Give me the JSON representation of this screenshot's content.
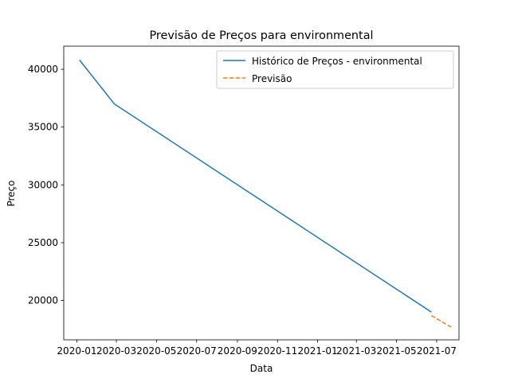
{
  "chart_data": {
    "type": "line",
    "title": "Previsão de Preços para environmental",
    "xlabel": "Data",
    "ylabel": "Preço",
    "x_axis_kind": "date",
    "xlim": [
      "2019-12-12",
      "2021-08-04"
    ],
    "ylim": [
      16600,
      42000
    ],
    "x_ticks": [
      {
        "date": "2020-01-01",
        "label": "2020-01"
      },
      {
        "date": "2020-03-01",
        "label": "2020-03"
      },
      {
        "date": "2020-05-01",
        "label": "2020-05"
      },
      {
        "date": "2020-07-01",
        "label": "2020-07"
      },
      {
        "date": "2020-09-01",
        "label": "2020-09"
      },
      {
        "date": "2020-11-01",
        "label": "2020-11"
      },
      {
        "date": "2021-01-01",
        "label": "2021-01"
      },
      {
        "date": "2021-03-01",
        "label": "2021-03"
      },
      {
        "date": "2021-05-01",
        "label": "2021-05"
      },
      {
        "date": "2021-07-01",
        "label": "2021-07"
      }
    ],
    "y_ticks": [
      {
        "value": 20000,
        "label": "20000"
      },
      {
        "value": 25000,
        "label": "25000"
      },
      {
        "value": 30000,
        "label": "30000"
      },
      {
        "value": 35000,
        "label": "35000"
      },
      {
        "value": 40000,
        "label": "40000"
      }
    ],
    "grid": false,
    "legend_position": "top-right",
    "series": [
      {
        "name": "Histórico de Preços - environmental",
        "color": "#1f77b4",
        "style": "solid",
        "points": [
          {
            "x": "2020-01-05",
            "y": 40800
          },
          {
            "x": "2020-02-27",
            "y": 37000
          },
          {
            "x": "2021-06-23",
            "y": 19000
          }
        ]
      },
      {
        "name": "Previsão",
        "color": "#ff7f0e",
        "style": "dashed",
        "points": [
          {
            "x": "2021-06-23",
            "y": 18700
          },
          {
            "x": "2021-07-23",
            "y": 17700
          }
        ]
      }
    ]
  }
}
